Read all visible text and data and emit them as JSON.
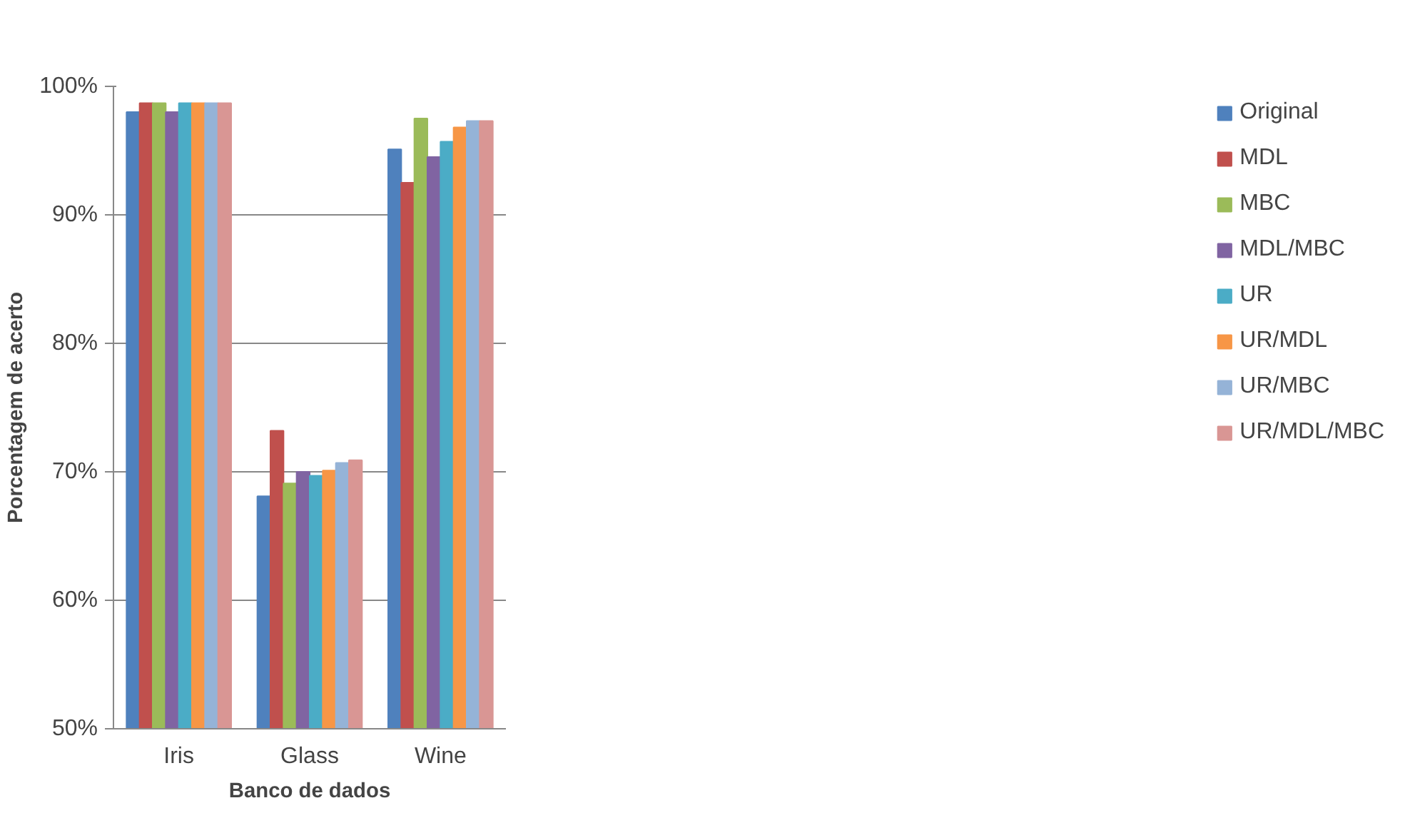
{
  "chart_data": {
    "type": "bar",
    "xlabel": "Banco de dados",
    "ylabel": "Porcentagem de acerto",
    "categories": [
      "Iris",
      "Glass",
      "Wine"
    ],
    "series": [
      {
        "name": "Original",
        "color": "#4f81bd",
        "values": [
          98.0,
          68.1,
          95.1
        ]
      },
      {
        "name": "MDL",
        "color": "#c0504d",
        "values": [
          98.7,
          73.2,
          92.5
        ]
      },
      {
        "name": "MBC",
        "color": "#9bbb59",
        "values": [
          98.7,
          69.1,
          97.5
        ]
      },
      {
        "name": "MDL/MBC",
        "color": "#8064a2",
        "values": [
          98.0,
          70.0,
          94.5
        ]
      },
      {
        "name": "UR",
        "color": "#4bacc6",
        "values": [
          98.7,
          69.7,
          95.7
        ]
      },
      {
        "name": "UR/MDL",
        "color": "#f79646",
        "values": [
          98.7,
          70.1,
          96.8
        ]
      },
      {
        "name": "UR/MBC",
        "color": "#95b3d7",
        "values": [
          98.7,
          70.7,
          97.3
        ]
      },
      {
        "name": "UR/MDL/MBC",
        "color": "#d99694",
        "values": [
          98.7,
          70.9,
          97.3
        ]
      }
    ],
    "ylim": [
      50,
      100
    ],
    "yticks": [
      {
        "value": 50,
        "label": "50%"
      },
      {
        "value": 60,
        "label": "60%"
      },
      {
        "value": 70,
        "label": "70%"
      },
      {
        "value": 80,
        "label": "80%"
      },
      {
        "value": 90,
        "label": "90%"
      },
      {
        "value": 100,
        "label": "100%"
      }
    ],
    "grid": "y",
    "legend": "right"
  }
}
